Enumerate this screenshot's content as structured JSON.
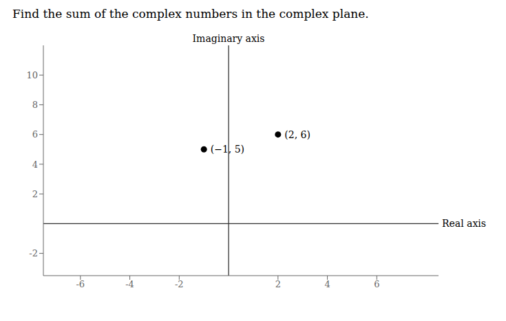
{
  "chart_data": {
    "type": "scatter",
    "title": "Find the sum of the complex numbers in the complex plane.",
    "x_label": "Real axis",
    "y_label": "Imaginary axis",
    "x": [
      2,
      -1
    ],
    "values": [
      6,
      5
    ],
    "value_labels": [
      "(2, 6)",
      "(−1, 5)"
    ],
    "data_labels": true,
    "color": "#000000",
    "xlim": [
      -7.5,
      8.5
    ],
    "ylim": [
      -3.5,
      12.0
    ],
    "xticks": [
      -6,
      -4,
      -2,
      2,
      4,
      6
    ],
    "yticks": [
      -2,
      2,
      4,
      6,
      8,
      10
    ],
    "grid": false
  }
}
